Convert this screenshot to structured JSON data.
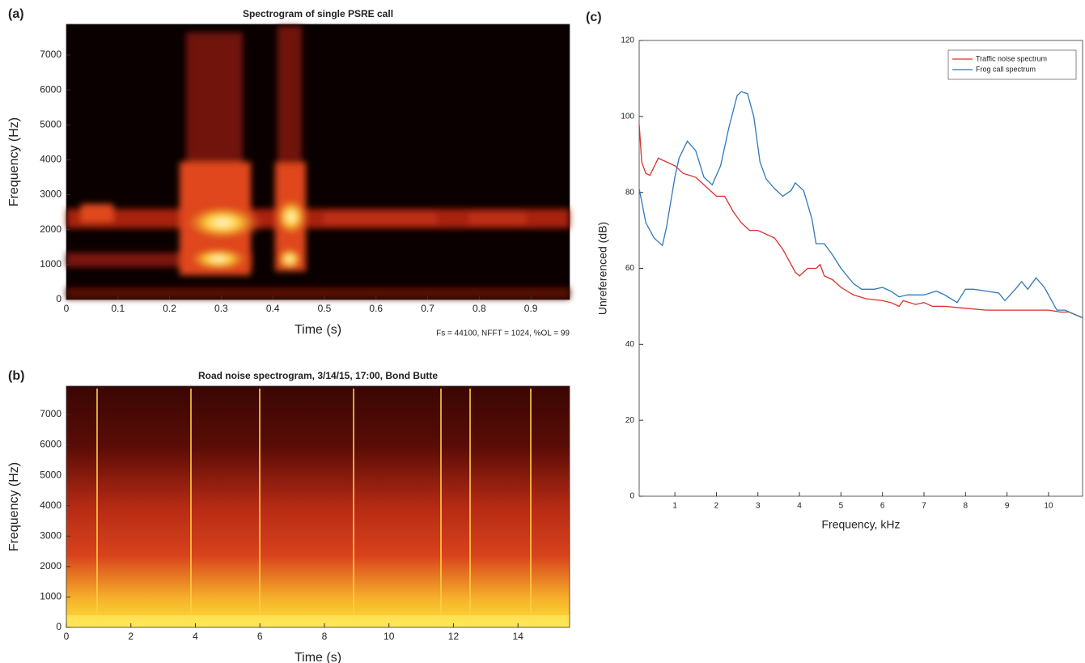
{
  "chart_data": [
    {
      "type": "spectrogram",
      "panel_label": "(a)",
      "title": "Spectrogram of single PSRE call",
      "x_label": "Time (s)",
      "y_label": "Frequency (Hz)",
      "annotation": "Fs = 44100, NFFT = 1024, %OL = 99",
      "xlim": [
        0,
        0.975
      ],
      "xticks": [
        0,
        0.1,
        0.2,
        0.3,
        0.4,
        0.5,
        0.6,
        0.7,
        0.8,
        0.9
      ],
      "ylim": [
        0,
        7880
      ],
      "yticks": [
        0,
        1000,
        2000,
        3000,
        4000,
        5000,
        6000,
        7000
      ]
    },
    {
      "type": "spectrogram",
      "panel_label": "(b)",
      "title": "Road noise spectrogram, 3/14/15, 17:00, Bond Butte",
      "x_label": "Time (s)",
      "y_label": "Frequency (Hz)",
      "xlim": [
        0,
        15.6
      ],
      "xticks": [
        0,
        2,
        4,
        6,
        8,
        10,
        12,
        14
      ],
      "ylim": [
        0,
        7930
      ],
      "yticks": [
        0,
        1000,
        2000,
        3000,
        4000,
        5000,
        6000,
        7000
      ]
    },
    {
      "type": "line",
      "panel_label": "(c)",
      "x_label": "Frequency, kHz",
      "y_label": "Unreferenced (dB)",
      "xlim": [
        0.14,
        10.82
      ],
      "xticks": [
        1,
        2,
        3,
        4,
        5,
        6,
        7,
        8,
        9,
        10
      ],
      "ylim": [
        0,
        120
      ],
      "yticks": [
        0,
        20,
        40,
        60,
        80,
        100,
        120
      ],
      "legend": "upper right",
      "series": [
        {
          "name": "Traffic noise spectrum",
          "color": "#d9312b",
          "x": [
            0.14,
            0.2,
            0.3,
            0.4,
            0.6,
            0.8,
            1.0,
            1.2,
            1.5,
            1.8,
            2.0,
            2.2,
            2.4,
            2.6,
            2.8,
            3.0,
            3.2,
            3.4,
            3.6,
            3.8,
            3.9,
            4.0,
            4.2,
            4.4,
            4.5,
            4.6,
            4.8,
            5.0,
            5.3,
            5.6,
            6.0,
            6.2,
            6.4,
            6.5,
            6.8,
            7.0,
            7.2,
            7.5,
            8.0,
            8.5,
            9.0,
            9.5,
            10.0,
            10.3,
            10.5,
            10.82
          ],
          "values": [
            98,
            88,
            85,
            84.5,
            89,
            88,
            87,
            85,
            84,
            81,
            79,
            79,
            75,
            72,
            70,
            70,
            69,
            68,
            65,
            61,
            59,
            58,
            60,
            60,
            61,
            58,
            57,
            55,
            53,
            52,
            51.5,
            51,
            50,
            51.5,
            50.5,
            51,
            50,
            50,
            49.5,
            49,
            49,
            49,
            49,
            48.5,
            48.5,
            47
          ]
        },
        {
          "name": "Frog call spectrum",
          "color": "#2f78b9",
          "x": [
            0.14,
            0.3,
            0.5,
            0.7,
            0.8,
            1.0,
            1.1,
            1.3,
            1.5,
            1.7,
            1.9,
            2.1,
            2.3,
            2.5,
            2.6,
            2.75,
            2.9,
            3.05,
            3.2,
            3.4,
            3.6,
            3.8,
            3.9,
            4.1,
            4.3,
            4.4,
            4.6,
            4.8,
            5.0,
            5.3,
            5.5,
            5.8,
            6.0,
            6.2,
            6.4,
            6.6,
            7.0,
            7.3,
            7.5,
            7.8,
            8.0,
            8.2,
            8.5,
            8.8,
            8.95,
            9.2,
            9.35,
            9.5,
            9.7,
            9.9,
            10.1,
            10.2,
            10.4,
            10.6,
            10.82
          ],
          "values": [
            81,
            72,
            68,
            66,
            71,
            84,
            89,
            93.5,
            91,
            84,
            82,
            87,
            97,
            105.5,
            106.5,
            106,
            100,
            88,
            83.5,
            81,
            79,
            80.5,
            82.5,
            80.5,
            73,
            66.5,
            66.5,
            63.5,
            60,
            56,
            54.5,
            54.5,
            55,
            54,
            52.5,
            53,
            53,
            54,
            53,
            51,
            54.5,
            54.5,
            54,
            53.5,
            51.5,
            54.5,
            56.5,
            54.5,
            57.5,
            55,
            51,
            49,
            49,
            48,
            47
          ]
        }
      ]
    }
  ]
}
